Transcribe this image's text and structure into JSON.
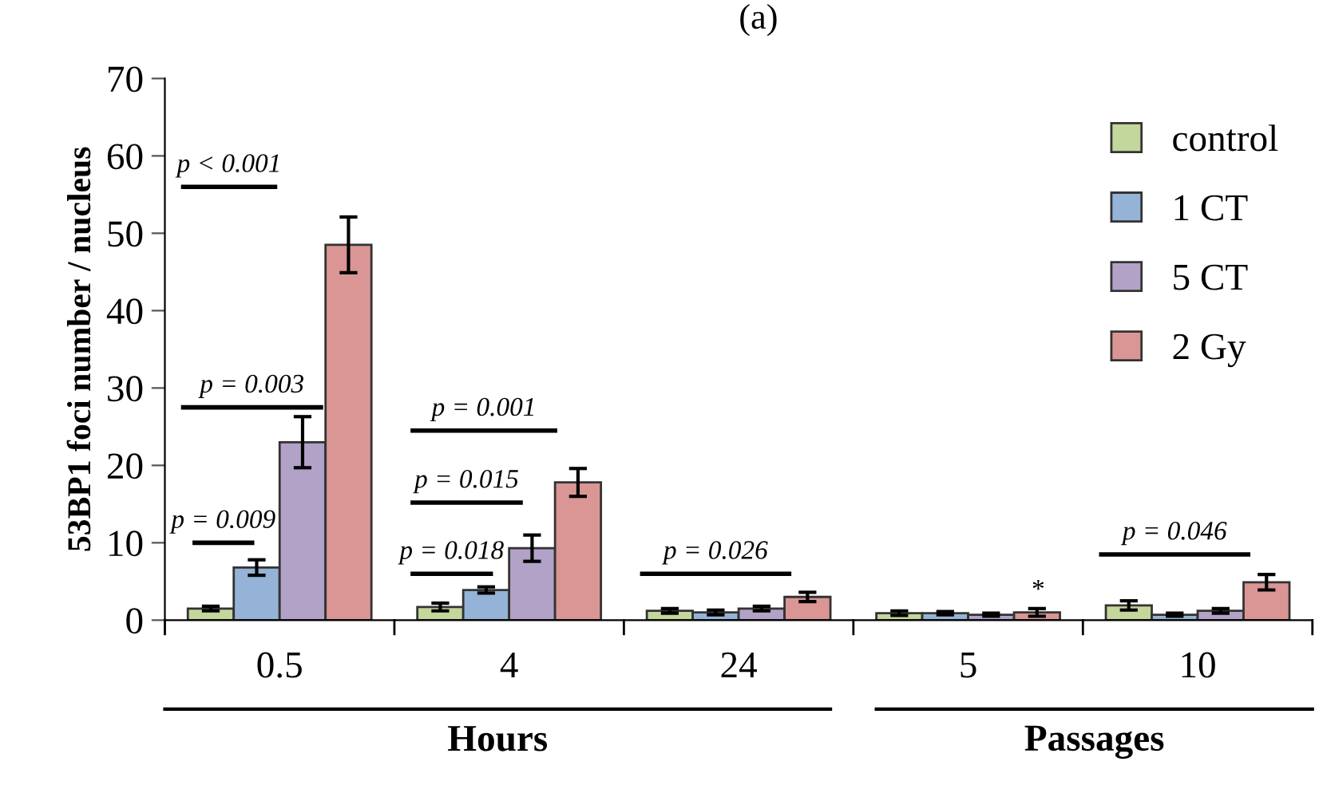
{
  "chart_data": {
    "type": "bar",
    "title": "(a)",
    "ylabel": "53BP1 foci number / nucleus",
    "categories": [
      "0.5",
      "4",
      "24",
      "5",
      "10"
    ],
    "series": [
      {
        "name": "control",
        "color": "#c3d69b",
        "values": [
          1.5,
          1.7,
          1.2,
          0.9,
          1.9
        ],
        "errors": [
          0.3,
          0.5,
          0.3,
          0.3,
          0.6
        ]
      },
      {
        "name": "1 CT",
        "color": "#95b3d7",
        "values": [
          6.8,
          3.9,
          1.0,
          0.9,
          0.7
        ],
        "errors": [
          1.0,
          0.4,
          0.3,
          0.2,
          0.2
        ]
      },
      {
        "name": "5 CT",
        "color": "#b3a2c7",
        "values": [
          23,
          9.3,
          1.5,
          0.7,
          1.2
        ],
        "errors": [
          3.3,
          1.7,
          0.3,
          0.2,
          0.3
        ]
      },
      {
        "name": "2 Gy",
        "color": "#d99694",
        "values": [
          48.5,
          17.8,
          3.0,
          1.0,
          4.9
        ],
        "errors": [
          3.6,
          1.8,
          0.6,
          0.5,
          1.0
        ]
      }
    ],
    "ylim": [
      0,
      70
    ],
    "yticks": [
      0,
      10,
      20,
      30,
      40,
      50,
      60,
      70
    ],
    "grid": false,
    "legend": "top right",
    "annotations": [
      "p < 0.001",
      "p = 0.003",
      "p = 0.009",
      "p = 0.001",
      "p = 0.015",
      "p = 0.018",
      "p = 0.026",
      "*",
      "p = 0.046",
      "Hours",
      "Passages"
    ]
  }
}
